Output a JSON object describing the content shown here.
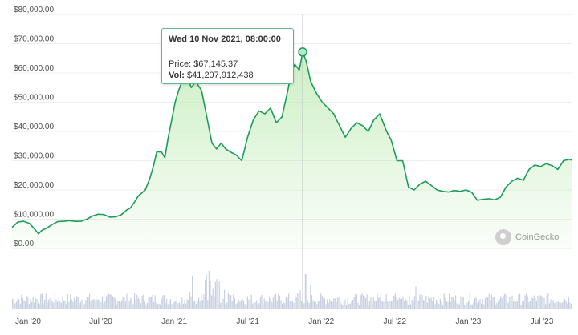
{
  "chart_data": {
    "type": "area",
    "y_tick_labels": [
      "$80,000.00",
      "$70,000.00",
      "$60,000.00",
      "$50,000.00",
      "$40,000.00",
      "$30,000.00",
      "$20,000.00",
      "$10,000.00",
      "$0.00"
    ],
    "x_tick_labels": [
      "Jan '20",
      "Jul '20",
      "Jan '21",
      "Jul '21",
      "Jan '22",
      "Jul '22",
      "Jan '23",
      "Jul '23"
    ],
    "ylim": [
      0,
      80000
    ],
    "grid": true,
    "series": [
      {
        "values": [
          [
            0,
            7200
          ],
          [
            0.5,
            9000
          ],
          [
            1,
            9300
          ],
          [
            1.5,
            8600
          ],
          [
            2,
            6500
          ],
          [
            2.3,
            5000
          ],
          [
            2.6,
            6200
          ],
          [
            3,
            6900
          ],
          [
            3.5,
            8200
          ],
          [
            4,
            9200
          ],
          [
            4.5,
            9300
          ],
          [
            5,
            9500
          ],
          [
            5.5,
            9250
          ],
          [
            6,
            9300
          ],
          [
            6.5,
            10000
          ],
          [
            7,
            11100
          ],
          [
            7.5,
            11700
          ],
          [
            8,
            11600
          ],
          [
            8.5,
            10700
          ],
          [
            9,
            10800
          ],
          [
            9.5,
            11500
          ],
          [
            10,
            13200
          ],
          [
            10.3,
            13800
          ],
          [
            10.6,
            15500
          ],
          [
            11,
            18000
          ],
          [
            11.3,
            19000
          ],
          [
            11.6,
            20000
          ],
          [
            12,
            24000
          ],
          [
            12.3,
            28000
          ],
          [
            12.6,
            33000
          ],
          [
            13,
            33000
          ],
          [
            13.3,
            31000
          ],
          [
            13.6,
            38000
          ],
          [
            14,
            46000
          ],
          [
            14.2,
            50000
          ],
          [
            14.5,
            54000
          ],
          [
            14.8,
            57000
          ],
          [
            15.2,
            59000
          ],
          [
            15.6,
            55000
          ],
          [
            16,
            57000
          ],
          [
            16.5,
            54000
          ],
          [
            17,
            44000
          ],
          [
            17.4,
            36000
          ],
          [
            17.8,
            34000
          ],
          [
            18.2,
            36000
          ],
          [
            18.6,
            34000
          ],
          [
            19,
            33000
          ],
          [
            19.5,
            32000
          ],
          [
            20,
            30000
          ],
          [
            20.5,
            38000
          ],
          [
            21,
            44000
          ],
          [
            21.5,
            47000
          ],
          [
            22,
            46000
          ],
          [
            22.5,
            48000
          ],
          [
            23,
            43000
          ],
          [
            23.5,
            45000
          ],
          [
            24,
            54000
          ],
          [
            24.3,
            60000
          ],
          [
            24.6,
            63000
          ],
          [
            25,
            61000
          ],
          [
            25.3,
            67145.37
          ],
          [
            25.6,
            64000
          ],
          [
            26,
            57000
          ],
          [
            26.5,
            53000
          ],
          [
            27,
            50000
          ],
          [
            27.5,
            48000
          ],
          [
            28,
            46000
          ],
          [
            28.5,
            42000
          ],
          [
            29,
            38000
          ],
          [
            29.5,
            41000
          ],
          [
            30,
            43000
          ],
          [
            30.5,
            42000
          ],
          [
            31,
            40000
          ],
          [
            31.5,
            44000
          ],
          [
            32,
            46000
          ],
          [
            32.3,
            43000
          ],
          [
            32.6,
            40000
          ],
          [
            33,
            37000
          ],
          [
            33.5,
            30000
          ],
          [
            34,
            30000
          ],
          [
            34.5,
            21000
          ],
          [
            35,
            20000
          ],
          [
            35.5,
            22000
          ],
          [
            36,
            23000
          ],
          [
            36.5,
            21500
          ],
          [
            37,
            20000
          ],
          [
            37.5,
            19500
          ],
          [
            38,
            19300
          ],
          [
            38.5,
            19800
          ],
          [
            39,
            19500
          ],
          [
            39.5,
            20000
          ],
          [
            40,
            19200
          ],
          [
            40.5,
            16500
          ],
          [
            41,
            16800
          ],
          [
            41.5,
            17000
          ],
          [
            42,
            16600
          ],
          [
            42.5,
            17500
          ],
          [
            43,
            21000
          ],
          [
            43.5,
            23000
          ],
          [
            44,
            24000
          ],
          [
            44.5,
            23300
          ],
          [
            45,
            27000
          ],
          [
            45.5,
            28500
          ],
          [
            46,
            28000
          ],
          [
            46.5,
            29000
          ],
          [
            47,
            28300
          ],
          [
            47.5,
            27000
          ],
          [
            48,
            30000
          ],
          [
            48.5,
            30500
          ],
          [
            48.7,
            30200
          ]
        ]
      }
    ],
    "tooltip": {
      "date": "Wed 10 Nov 2021, 08:00:00",
      "price_label": "Price:",
      "price_value": "$67,145.37",
      "vol_label": "Vol:",
      "vol_value": "$41,207,912,438"
    },
    "watermark": "CoinGecko",
    "line_color": "#1d9c5a",
    "fill_color": "#c9eec0",
    "volume_color": "#c8cfe0"
  }
}
